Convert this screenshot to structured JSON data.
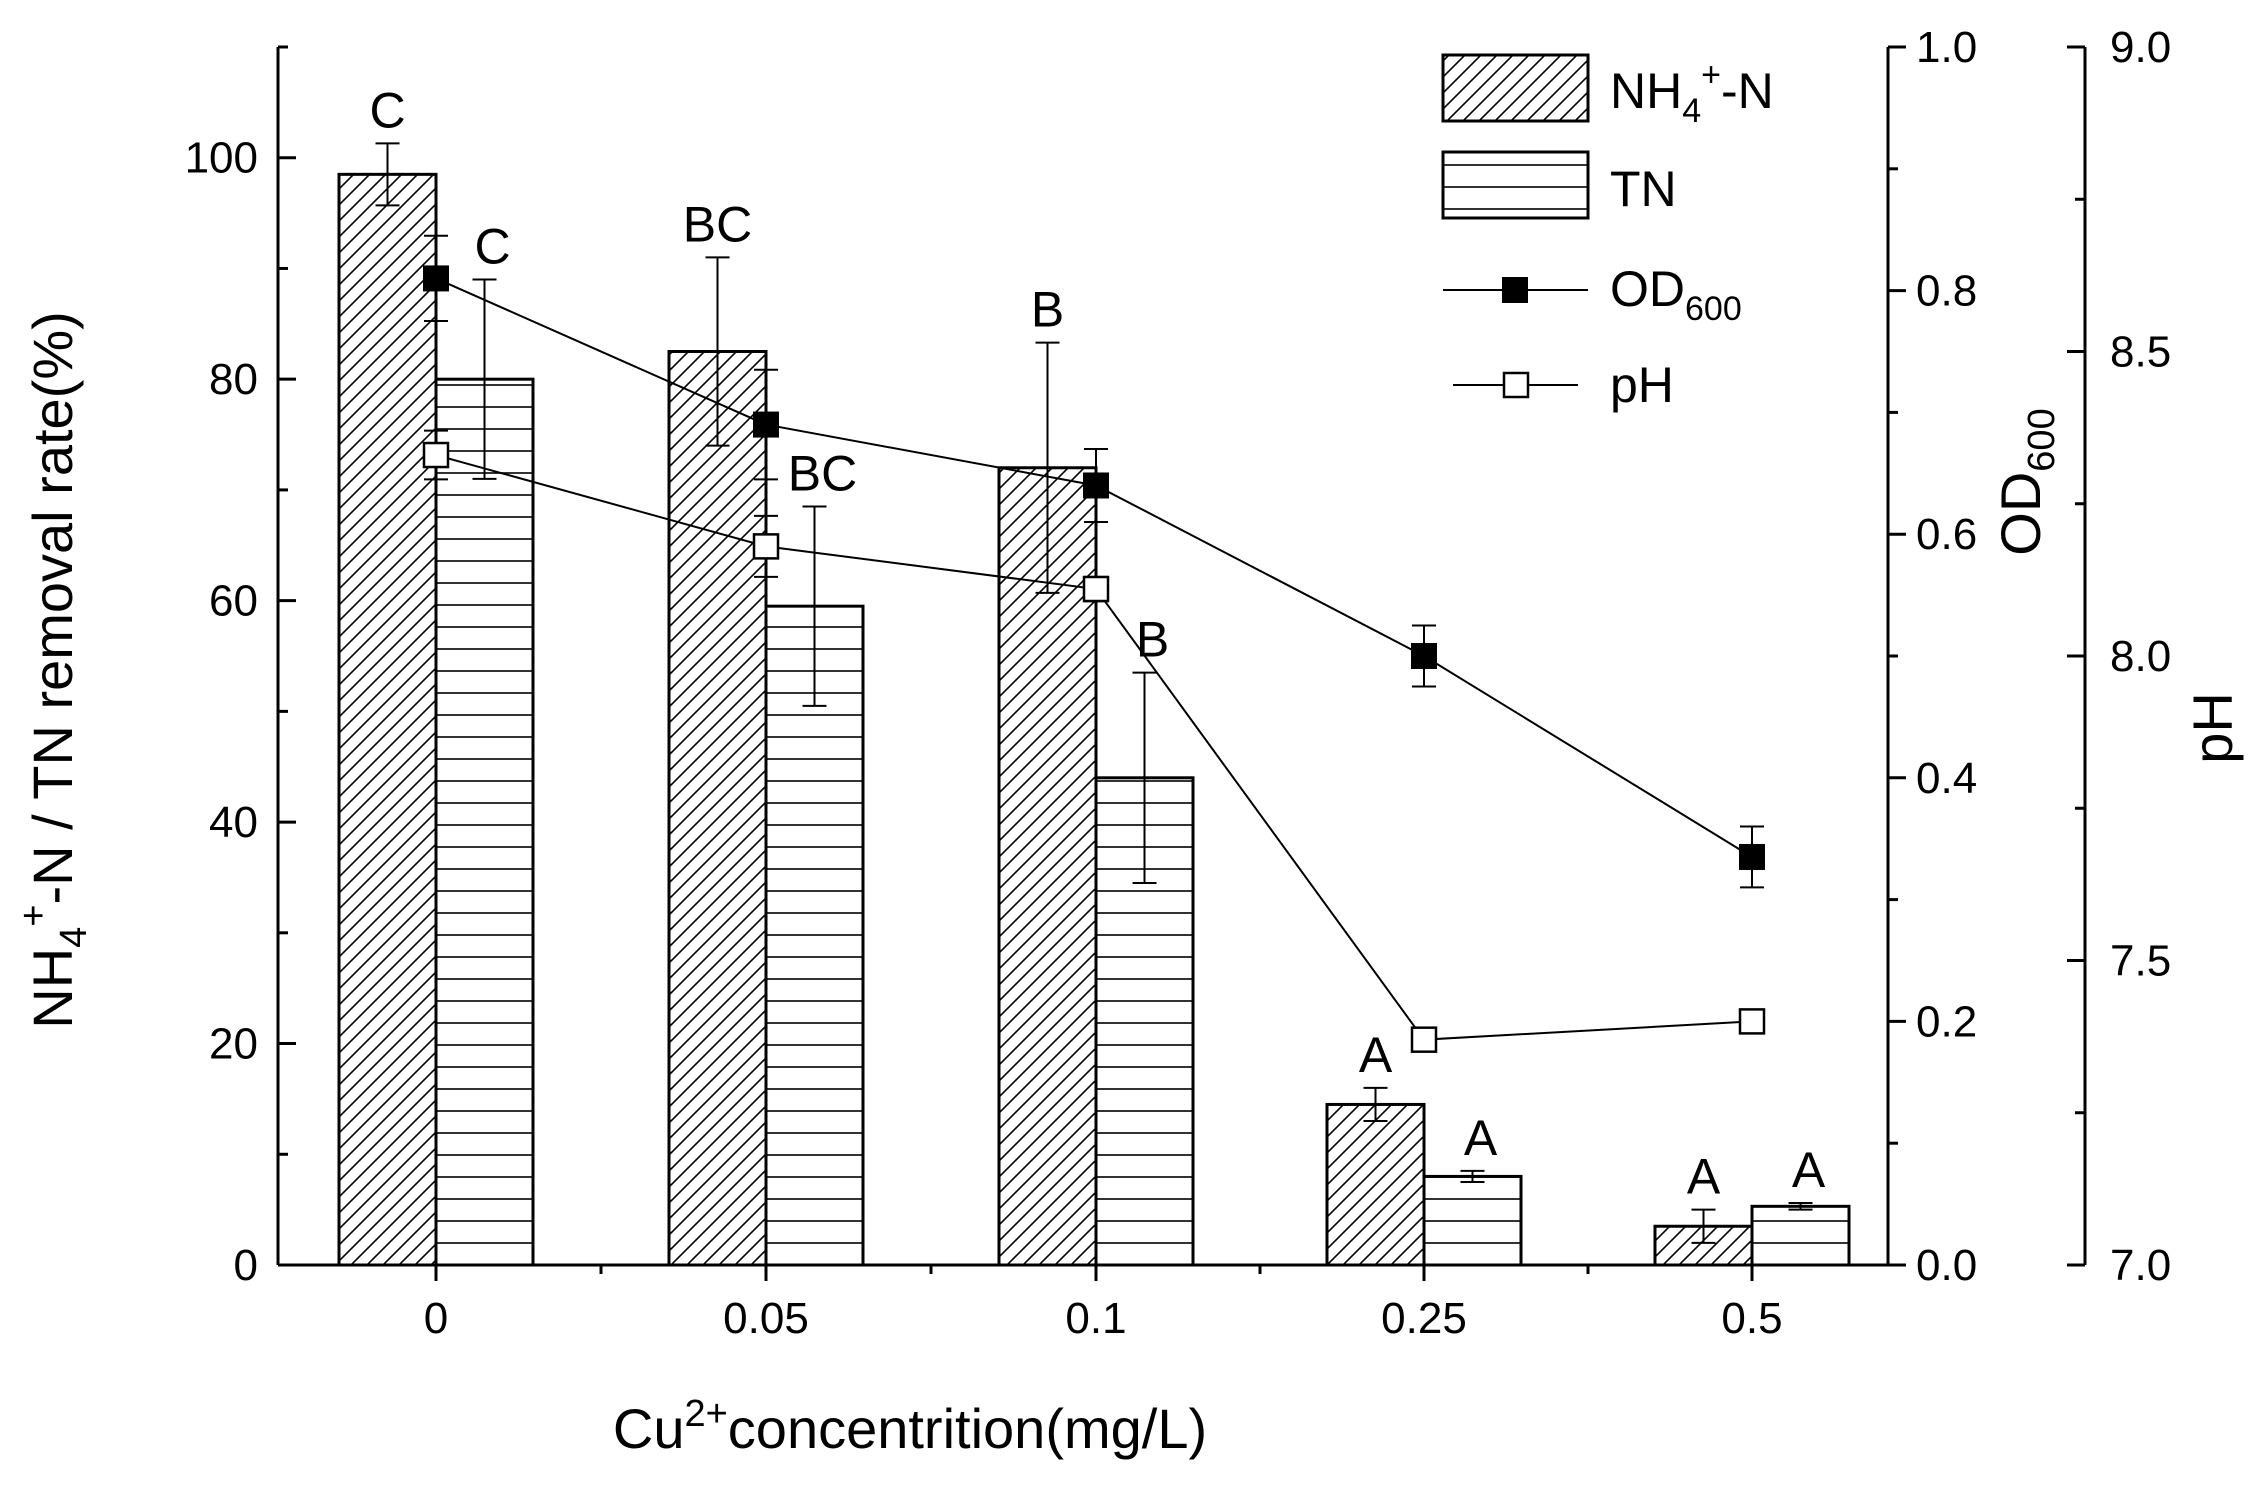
{
  "chart_data": {
    "type": "bar",
    "categories": [
      "0",
      "0.05",
      "0.1",
      "0.25",
      "0.5"
    ],
    "xlabel": {
      "main": "Cu",
      "sup": "2+",
      "rest": "concentrition(mg/L)"
    },
    "ylabel_left": {
      "p1": "NH",
      "sub": "4",
      "sup": "+",
      "p2": "-N / TN removal rate(%)"
    },
    "ylabel_mid": {
      "main": "OD",
      "sub": "600"
    },
    "ylabel_right": "pH",
    "axes": {
      "left": {
        "min": 0,
        "max": 110,
        "ticks": [
          0,
          20,
          40,
          60,
          80,
          100
        ]
      },
      "od": {
        "min": 0,
        "max": 1.0,
        "ticks": [
          "0.0",
          "0.2",
          "0.4",
          "0.6",
          "0.8",
          "1.0"
        ]
      },
      "ph": {
        "min": 7.0,
        "max": 9.0,
        "ticks": [
          "7.0",
          "7.5",
          "8.0",
          "8.5",
          "9.0"
        ]
      }
    },
    "bar_series": [
      {
        "name": "NH4+-N",
        "pattern": "diagonal",
        "values": [
          98.5,
          82.5,
          72,
          14.5,
          3.5
        ],
        "errors": [
          2.8,
          8.5,
          11.3,
          1.5,
          1.5
        ],
        "sig_labels": [
          "C",
          "BC",
          "B",
          "A",
          "A"
        ]
      },
      {
        "name": "TN",
        "pattern": "horizontal",
        "values": [
          80,
          59.5,
          44,
          8,
          5.3
        ],
        "errors": [
          9,
          9,
          9.5,
          0.5,
          0.3
        ],
        "sig_labels": [
          "C",
          "BC",
          "B",
          "A",
          "A"
        ]
      }
    ],
    "line_series": [
      {
        "name": "OD600",
        "axis": "od",
        "marker": "filled-square",
        "values": [
          0.81,
          0.69,
          0.64,
          0.5,
          0.335
        ],
        "errors": [
          0.035,
          0.045,
          0.03,
          0.025,
          0.025
        ]
      },
      {
        "name": "pH",
        "axis": "ph",
        "marker": "open-square",
        "values": [
          8.33,
          8.18,
          8.11,
          7.37,
          7.4
        ],
        "errors": [
          0.04,
          0.05,
          0.02,
          0.01,
          0.01
        ]
      }
    ],
    "legend": {
      "position": "top-right",
      "items": [
        {
          "p1": "NH",
          "sub": "4",
          "sup": "+",
          "p2": "-N"
        },
        {
          "p1": "TN"
        },
        {
          "p1": "OD",
          "sub": "600"
        },
        {
          "p1": "pH"
        }
      ]
    }
  }
}
